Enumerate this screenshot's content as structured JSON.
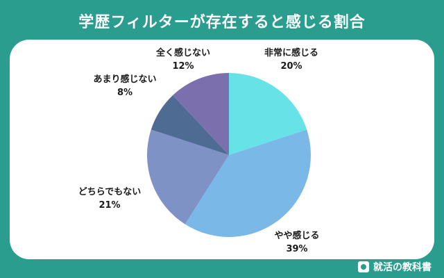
{
  "title": "学歴フィルターが存在すると感じる割合",
  "brand": "就活の教科書",
  "chart_data": {
    "type": "pie",
    "title": "学歴フィルターが存在すると感じる割合",
    "slices": [
      {
        "label": "非常に感じる",
        "value": 20,
        "display": "20%",
        "color": "#67e3e8"
      },
      {
        "label": "やや感じる",
        "value": 39,
        "display": "39%",
        "color": "#7ab8e8"
      },
      {
        "label": "どちらでもない",
        "value": 21,
        "display": "21%",
        "color": "#7f92c6"
      },
      {
        "label": "あまり感じない",
        "value": 8,
        "display": "8%",
        "color": "#4e6b94"
      },
      {
        "label": "全く感じない",
        "value": 12,
        "display": "12%",
        "color": "#7b6fad"
      }
    ],
    "start": "12 o'clock",
    "direction": "clockwise",
    "legend": "none"
  }
}
